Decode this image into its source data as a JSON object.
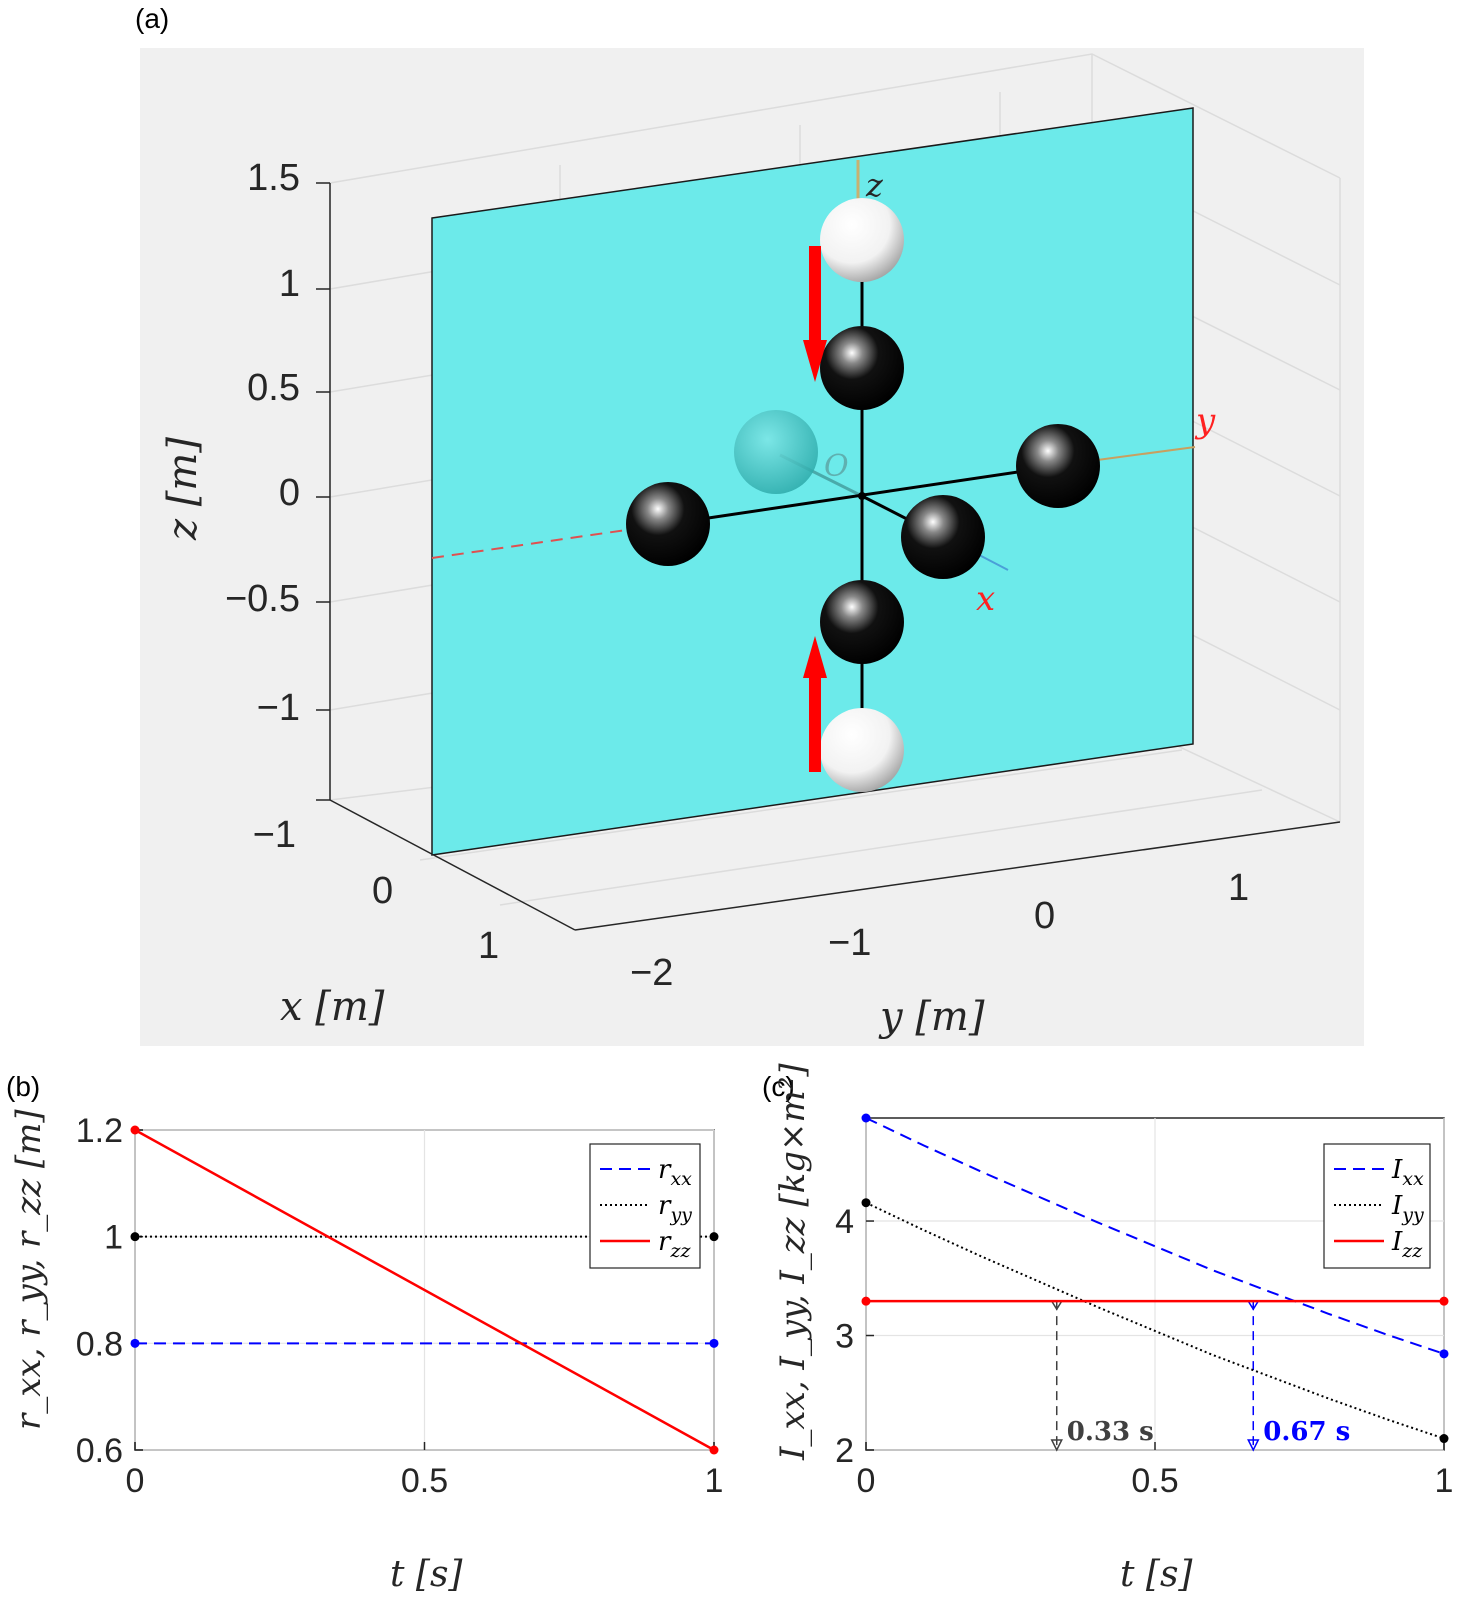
{
  "panel_labels": {
    "a": "(a)",
    "b": "(b)",
    "c": "(c)"
  },
  "scene3d": {
    "z_ticks": [
      "1.5",
      "1",
      "0.5",
      "0",
      "−0.5",
      "−1",
      "−1"
    ],
    "x_ticks": [
      "0",
      "1"
    ],
    "y_ticks": [
      "−2",
      "−1",
      "0",
      "1"
    ],
    "xlabel": "x [m]",
    "ylabel": "y [m]",
    "zlabel": "z [m]",
    "axis_labels": {
      "x": "x",
      "y": "y",
      "z": "z",
      "origin": "O"
    },
    "colors": {
      "plane": "#6ceaea",
      "background": "#f0f0f0",
      "arrow": "#ff0000",
      "sphere_dark": "#000000",
      "sphere_light": "#ffffff"
    }
  },
  "chart_data": [
    {
      "type": "line",
      "panel": "b",
      "xlabel": "t [s]",
      "ylabel": "r_xx, r_yy, r_zz [m]",
      "xlim": [
        0,
        1
      ],
      "ylim": [
        0.6,
        1.2
      ],
      "xticks": [
        "0",
        "0.5",
        "1"
      ],
      "yticks": [
        "0.6",
        "0.8",
        "1",
        "1.2"
      ],
      "grid": true,
      "legend_position": "top-right",
      "series": [
        {
          "name": "r_xx",
          "style": "dashed",
          "color": "#0000ff",
          "x": [
            0,
            1
          ],
          "y": [
            0.8,
            0.8
          ]
        },
        {
          "name": "r_yy",
          "style": "dotted",
          "color": "#000000",
          "x": [
            0,
            1
          ],
          "y": [
            1.0,
            1.0
          ]
        },
        {
          "name": "r_zz",
          "style": "solid",
          "color": "#ff0000",
          "x": [
            0,
            1
          ],
          "y": [
            1.2,
            0.6
          ]
        }
      ]
    },
    {
      "type": "line",
      "panel": "c",
      "xlabel": "t [s]",
      "ylabel": "I_xx, I_yy, I_zz [kg×m²]",
      "xlim": [
        0,
        1
      ],
      "ylim": [
        2,
        4.9
      ],
      "xticks": [
        "0",
        "0.5",
        "1"
      ],
      "yticks": [
        "2",
        "3",
        "4"
      ],
      "grid": true,
      "legend_position": "top-right",
      "series": [
        {
          "name": "I_xx",
          "style": "dashed",
          "color": "#0000ff",
          "x": [
            0,
            0.1,
            0.2,
            0.3,
            0.4,
            0.5,
            0.6,
            0.7,
            0.8,
            0.9,
            1.0
          ],
          "y": [
            4.9,
            4.66,
            4.43,
            4.21,
            3.99,
            3.78,
            3.57,
            3.38,
            3.19,
            3.01,
            2.84
          ]
        },
        {
          "name": "I_yy",
          "style": "dotted",
          "color": "#000000",
          "x": [
            0,
            0.1,
            0.2,
            0.3,
            0.4,
            0.5,
            0.6,
            0.7,
            0.8,
            0.9,
            1.0
          ],
          "y": [
            4.16,
            3.92,
            3.69,
            3.47,
            3.25,
            3.04,
            2.83,
            2.64,
            2.45,
            2.27,
            2.1
          ]
        },
        {
          "name": "I_zz",
          "style": "solid",
          "color": "#ff0000",
          "x": [
            0,
            1
          ],
          "y": [
            3.3,
            3.3
          ]
        }
      ],
      "annotations": [
        {
          "x": 0.33,
          "label": "0.33 s",
          "color": "#404040",
          "y": 3.3
        },
        {
          "x": 0.67,
          "label": "0.67 s",
          "color": "#0000ff",
          "y": 3.3
        }
      ]
    }
  ]
}
